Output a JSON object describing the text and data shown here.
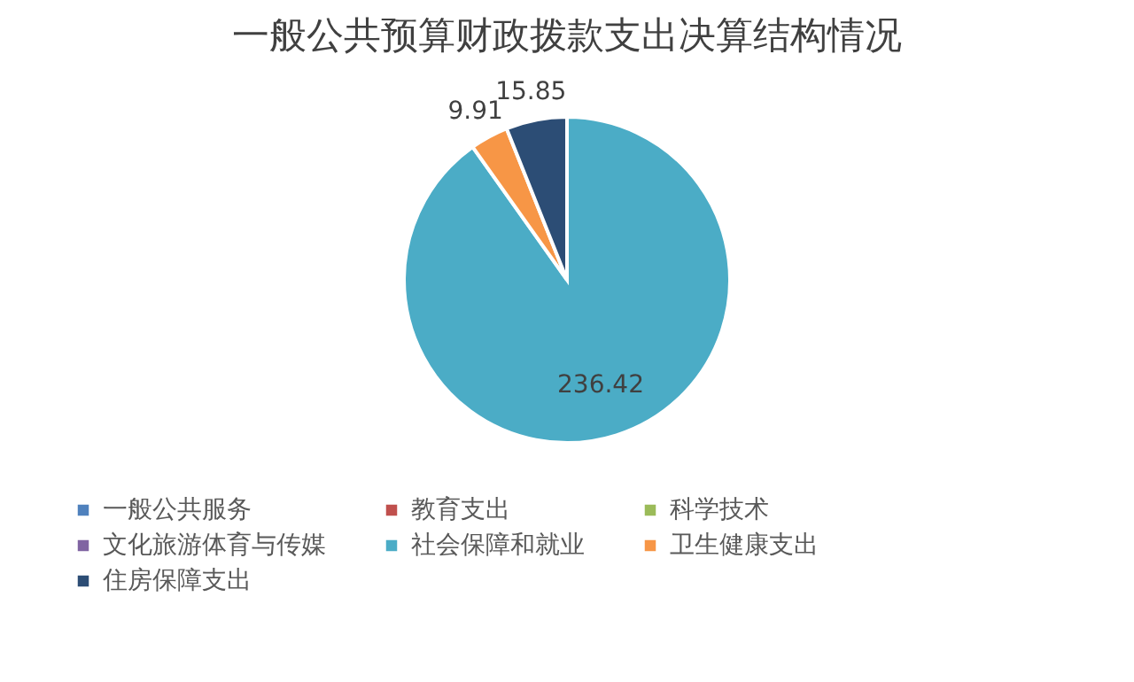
{
  "chart_data": {
    "type": "pie",
    "title": "一般公共预算财政拨款支出决算结构情况",
    "categories": [
      "一般公共服务",
      "教育支出",
      "科学技术",
      "文化旅游体育与传媒",
      "社会保障和就业",
      "卫生健康支出",
      "住房保障支出"
    ],
    "values": [
      0,
      0,
      0,
      0,
      236.42,
      9.91,
      15.85
    ],
    "colors": [
      "#4f81bd",
      "#c0504d",
      "#9bbb59",
      "#8064a2",
      "#4bacc6",
      "#f79646",
      "#2c4d75"
    ],
    "value_labels": [
      null,
      null,
      null,
      null,
      "236.42",
      "9.91",
      "15.85"
    ],
    "legend": "bottom"
  }
}
